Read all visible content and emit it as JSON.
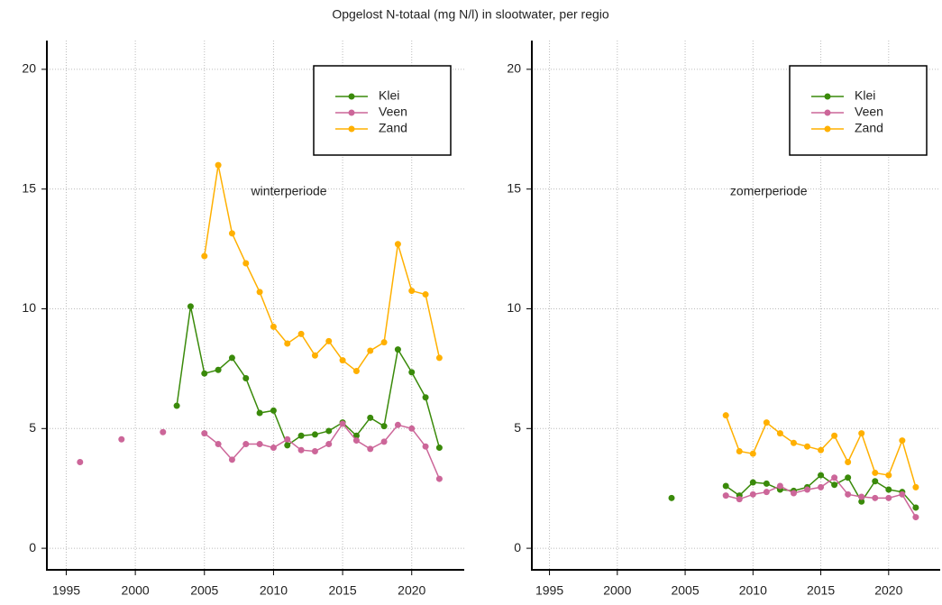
{
  "title": "Opgelost N-totaal (mg N/l) in slootwater, per regio",
  "chart_data": [
    {
      "type": "line",
      "annotation": "winterperiode",
      "grid": true,
      "legend": "top-right",
      "xlim": [
        1993.6,
        2023.8
      ],
      "ylim": [
        -0.9,
        21.2
      ],
      "xticks": [
        1995,
        2000,
        2005,
        2010,
        2015,
        2020
      ],
      "yticks": [
        0,
        5,
        10,
        15,
        20
      ],
      "x": [
        1996,
        1997,
        1998,
        1999,
        2000,
        2001,
        2002,
        2003,
        2004,
        2005,
        2006,
        2007,
        2008,
        2009,
        2010,
        2011,
        2012,
        2013,
        2014,
        2015,
        2016,
        2017,
        2018,
        2019,
        2020,
        2021,
        2022
      ],
      "series": [
        {
          "name": "Klei",
          "color": "#3a8a0a",
          "values": [
            null,
            null,
            null,
            null,
            null,
            null,
            null,
            5.95,
            10.1,
            7.3,
            7.45,
            7.95,
            7.1,
            5.65,
            5.75,
            4.3,
            4.7,
            4.75,
            4.9,
            5.25,
            4.7,
            5.45,
            5.1,
            8.3,
            7.35,
            6.3,
            4.2
          ]
        },
        {
          "name": "Veen",
          "color": "#cc6699",
          "values": [
            3.6,
            null,
            null,
            4.55,
            null,
            null,
            4.85,
            null,
            null,
            4.8,
            4.35,
            3.7,
            4.35,
            4.35,
            4.2,
            4.55,
            4.1,
            4.05,
            4.35,
            5.2,
            4.5,
            4.15,
            4.45,
            5.15,
            5.0,
            4.25,
            2.9
          ]
        },
        {
          "name": "Zand",
          "color": "#ffb000",
          "values": [
            null,
            null,
            null,
            null,
            null,
            null,
            null,
            null,
            null,
            12.2,
            16.0,
            13.15,
            11.9,
            10.7,
            9.25,
            8.55,
            8.95,
            8.05,
            8.65,
            7.85,
            7.4,
            8.25,
            8.6,
            12.7,
            10.75,
            10.6,
            7.95
          ]
        }
      ]
    },
    {
      "type": "line",
      "annotation": "zomerperiode",
      "grid": true,
      "legend": "top-right",
      "xlim": [
        1993.7,
        2023.8
      ],
      "ylim": [
        -0.9,
        21.2
      ],
      "xticks": [
        1995,
        2000,
        2005,
        2010,
        2015,
        2020
      ],
      "yticks": [
        0,
        5,
        10,
        15,
        20
      ],
      "x": [
        2004,
        2005,
        2006,
        2007,
        2008,
        2009,
        2010,
        2011,
        2012,
        2013,
        2014,
        2015,
        2016,
        2017,
        2018,
        2019,
        2020,
        2021,
        2022
      ],
      "series": [
        {
          "name": "Klei",
          "color": "#3a8a0a",
          "values": [
            2.1,
            null,
            null,
            null,
            2.6,
            2.2,
            2.75,
            2.7,
            2.45,
            2.4,
            2.55,
            3.05,
            2.65,
            2.95,
            1.95,
            2.8,
            2.45,
            2.35,
            1.7
          ]
        },
        {
          "name": "Veen",
          "color": "#cc6699",
          "values": [
            null,
            null,
            null,
            null,
            2.2,
            2.05,
            2.25,
            2.35,
            2.6,
            2.3,
            2.45,
            2.55,
            2.95,
            2.25,
            2.15,
            2.1,
            2.1,
            2.25,
            1.3
          ]
        },
        {
          "name": "Zand",
          "color": "#ffb000",
          "values": [
            null,
            null,
            null,
            null,
            5.55,
            4.05,
            3.95,
            5.25,
            4.8,
            4.4,
            4.25,
            4.1,
            4.7,
            3.6,
            4.8,
            3.15,
            3.05,
            4.5,
            2.55
          ]
        }
      ]
    }
  ]
}
